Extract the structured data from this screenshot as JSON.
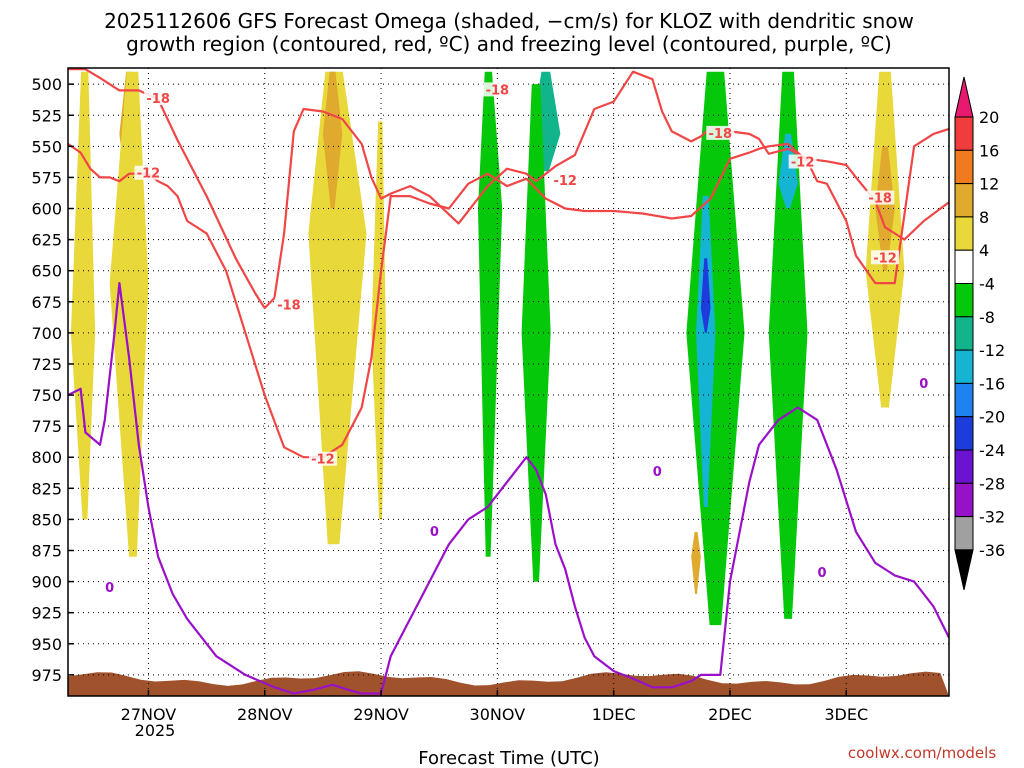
{
  "chart_data": {
    "type": "heatmap",
    "title_line1": "2025112606 GFS Forecast Omega (shaded, −cm/s) for KLOZ with dendritic snow",
    "title_line2": "growth region (contoured, red, ºC) and freezing level (contoured, purple, ºC)",
    "xlabel": "Forecast Time (UTC)",
    "credit": "coolwx.com/models",
    "x_ticks": [
      "27NOV",
      "28NOV",
      "29NOV",
      "30NOV",
      "1DEC",
      "2DEC",
      "3DEC"
    ],
    "x_year": "2025",
    "x_range_hours": [
      -16.6,
      165.2
    ],
    "y_ticks": [
      500,
      525,
      550,
      575,
      600,
      625,
      650,
      675,
      700,
      725,
      750,
      775,
      800,
      825,
      850,
      875,
      900,
      925,
      950,
      975
    ],
    "y_range_hpa": [
      487,
      992
    ],
    "colorbar": {
      "levels": [
        20,
        16,
        12,
        8,
        4,
        -4,
        -8,
        -12,
        -16,
        -20,
        -24,
        -28,
        -32,
        -36
      ],
      "colors": [
        "#e8196e",
        "#f03c3c",
        "#f07a1e",
        "#e0aa2e",
        "#e8d83a",
        "#ffffff",
        "#06c80a",
        "#12b48c",
        "#14b4d2",
        "#1e82f0",
        "#1e3cdc",
        "#6a14d2",
        "#9612c8",
        "#a0a0a0",
        "#000000"
      ]
    },
    "omega_regions": [
      {
        "value": 6,
        "t": [
          -16,
          -13,
          -11
        ],
        "p": [
          490,
          700,
          850
        ]
      },
      {
        "value": 9,
        "t": [
          -6,
          -4,
          -2
        ],
        "p": [
          490,
          540,
          590
        ]
      },
      {
        "value": 6,
        "t": [
          -8,
          -3,
          0
        ],
        "p": [
          490,
          660,
          880
        ]
      },
      {
        "value": 6,
        "t": [
          33,
          38,
          45
        ],
        "p": [
          490,
          620,
          870
        ]
      },
      {
        "value": 9,
        "t": [
          36,
          38,
          40
        ],
        "p": [
          490,
          540,
          600
        ]
      },
      {
        "value": 6,
        "t": [
          46,
          48,
          49
        ],
        "p": [
          530,
          700,
          850
        ]
      },
      {
        "value": -6,
        "t": [
          68,
          70,
          73
        ],
        "p": [
          490,
          600,
          880
        ]
      },
      {
        "value": -10,
        "t": [
          79,
          82,
          85
        ],
        "p": [
          490,
          540,
          570
        ]
      },
      {
        "value": -6,
        "t": [
          77,
          80,
          83
        ],
        "p": [
          500,
          700,
          900
        ]
      },
      {
        "value": -6,
        "t": [
          111,
          117,
          123
        ],
        "p": [
          490,
          700,
          935
        ]
      },
      {
        "value": -12,
        "t": [
          113,
          115,
          117
        ],
        "p": [
          590,
          700,
          840
        ]
      },
      {
        "value": -20,
        "t": [
          114,
          115,
          116
        ],
        "p": [
          640,
          680,
          700
        ]
      },
      {
        "value": -6,
        "t": [
          128,
          132,
          136
        ],
        "p": [
          490,
          700,
          930
        ]
      },
      {
        "value": -12,
        "t": [
          130,
          132,
          134
        ],
        "p": [
          540,
          580,
          600
        ]
      },
      {
        "value": 6,
        "t": [
          148,
          152,
          156
        ],
        "p": [
          490,
          650,
          760
        ]
      },
      {
        "value": 9,
        "t": [
          150,
          152,
          154
        ],
        "p": [
          550,
          600,
          650
        ]
      },
      {
        "value": 10,
        "t": [
          112,
          113,
          114
        ],
        "p": [
          860,
          880,
          910
        ]
      }
    ],
    "contours": [
      {
        "level": -18,
        "label": "-18",
        "color": "#f04646",
        "t": [
          -16.6,
          -13,
          -10,
          -6,
          -2,
          2,
          6,
          12,
          18,
          22,
          24,
          26,
          28,
          30,
          32,
          36,
          40,
          44,
          46,
          48,
          50,
          54,
          58,
          64,
          70,
          74,
          78,
          80,
          84,
          88,
          92,
          96,
          100,
          104,
          106,
          108,
          112,
          114,
          116,
          120,
          124,
          126,
          128,
          132,
          136,
          140,
          144,
          146,
          150,
          152,
          156,
          160,
          165.2
        ],
        "p": [
          488,
          488,
          495,
          505,
          505,
          512,
          545,
          590,
          640,
          668,
          680,
          672,
          620,
          538,
          520,
          522,
          528,
          548,
          575,
          592,
          588,
          582,
          590,
          612,
          582,
          568,
          572,
          578,
          566,
          557,
          520,
          514,
          490,
          496,
          522,
          538,
          546,
          542,
          535,
          538,
          540,
          544,
          556,
          552,
          560,
          562,
          565,
          575,
          594,
          615,
          625,
          610,
          595
        ]
      },
      {
        "level": -12,
        "label": "-12",
        "color": "#f04646",
        "t": [
          -16.6,
          -14,
          -12,
          -10,
          -8,
          -6,
          -4,
          0,
          2,
          4,
          6,
          8,
          12,
          16,
          20,
          24,
          28,
          32,
          36,
          40,
          44,
          46,
          48,
          50,
          54,
          58,
          62,
          66,
          70,
          74,
          78,
          82,
          86,
          90,
          96,
          102,
          108,
          112,
          116,
          120,
          124,
          126,
          128,
          132,
          136,
          138,
          140,
          144,
          146,
          150,
          154,
          158,
          162,
          165.2
        ],
        "p": [
          548,
          555,
          568,
          575,
          575,
          578,
          572,
          572,
          578,
          582,
          590,
          610,
          620,
          650,
          700,
          750,
          792,
          800,
          800,
          790,
          760,
          720,
          650,
          590,
          590,
          596,
          600,
          580,
          572,
          582,
          576,
          592,
          600,
          602,
          602,
          604,
          608,
          606,
          592,
          560,
          555,
          552,
          550,
          548,
          562,
          578,
          580,
          610,
          638,
          660,
          660,
          550,
          540,
          536
        ]
      },
      {
        "level": 0,
        "label": "0",
        "color": "#9a10c8",
        "t": [
          -16.6,
          -14,
          -13,
          -10,
          -9,
          -7,
          -6,
          -4,
          -2,
          0,
          2,
          5,
          8,
          14,
          20,
          26,
          30,
          34,
          38,
          42,
          44,
          48,
          50,
          54,
          58,
          62,
          66,
          70,
          74,
          78,
          80,
          82,
          84,
          86,
          88,
          90,
          92,
          96,
          100,
          104,
          108,
          112,
          114,
          118,
          120,
          124,
          126,
          130,
          134,
          138,
          142,
          146,
          150,
          154,
          158,
          162,
          165.2
        ],
        "p": [
          750,
          745,
          780,
          790,
          770,
          700,
          660,
          720,
          790,
          840,
          880,
          910,
          930,
          960,
          975,
          985,
          990,
          987,
          983,
          988,
          990,
          990,
          960,
          930,
          900,
          870,
          850,
          840,
          820,
          800,
          810,
          830,
          870,
          890,
          920,
          945,
          960,
          972,
          978,
          985,
          985,
          980,
          975,
          975,
          900,
          820,
          790,
          770,
          760,
          770,
          810,
          860,
          885,
          895,
          900,
          920,
          945
        ]
      }
    ],
    "contour_labels": [
      {
        "text": "-18",
        "t": 2,
        "p": 512,
        "color": "#f04646"
      },
      {
        "text": "-12",
        "t": 0,
        "p": 572,
        "color": "#f04646"
      },
      {
        "text": "-18",
        "t": 29,
        "p": 678,
        "color": "#f04646"
      },
      {
        "text": "-12",
        "t": 36,
        "p": 802,
        "color": "#f04646"
      },
      {
        "text": "-18",
        "t": 72,
        "p": 505,
        "color": "#f04646"
      },
      {
        "text": "-12",
        "t": 86,
        "p": 578,
        "color": "#f04646"
      },
      {
        "text": "-18",
        "t": 118,
        "p": 540,
        "color": "#f04646"
      },
      {
        "text": "-12",
        "t": 135,
        "p": 563,
        "color": "#f04646"
      },
      {
        "text": "-18",
        "t": 151,
        "p": 592,
        "color": "#f04646"
      },
      {
        "text": "-12",
        "t": 152,
        "p": 640,
        "color": "#f04646"
      },
      {
        "text": "0",
        "t": -8,
        "p": 905,
        "color": "#9a10c8"
      },
      {
        "text": "0",
        "t": 59,
        "p": 860,
        "color": "#9a10c8"
      },
      {
        "text": "0",
        "t": 105,
        "p": 812,
        "color": "#9a10c8"
      },
      {
        "text": "0",
        "t": 139,
        "p": 893,
        "color": "#9a10c8"
      },
      {
        "text": "0",
        "t": 160,
        "p": 741,
        "color": "#9a10c8"
      }
    ],
    "terrain_color": "#a0522d"
  }
}
